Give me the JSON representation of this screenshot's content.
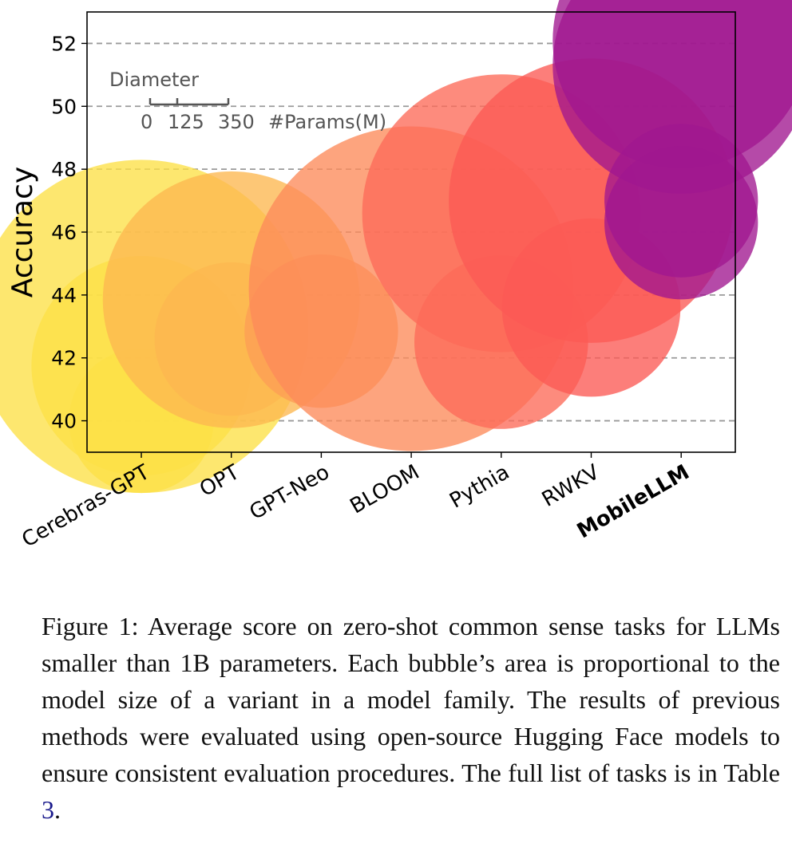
{
  "chart_data": {
    "type": "bubble",
    "ylabel": "Accuracy",
    "xlabel": "",
    "ylim": [
      39,
      53
    ],
    "yticks": [
      40,
      42,
      44,
      46,
      48,
      50,
      52
    ],
    "grid": "horizontal dashed",
    "categories": [
      "Cerebras-GPT",
      "OPT",
      "GPT-Neo",
      "BLOOM",
      "Pythia",
      "RWKV",
      "MobileLLM"
    ],
    "highlighted_category": "MobileLLM",
    "size_legend": {
      "title": "Diameter",
      "ticks": [
        "0",
        "125",
        "350"
      ],
      "unit_label": "#Params(M)"
    },
    "series": [
      {
        "category": "Cerebras-GPT",
        "color": "#fde047",
        "points": [
          {
            "accuracy": 43.0,
            "params_m": 590
          },
          {
            "accuracy": 41.75,
            "params_m": 256
          },
          {
            "accuracy": 40.0,
            "params_m": 111
          }
        ]
      },
      {
        "category": "OPT",
        "color": "#fdb750",
        "points": [
          {
            "accuracy": 43.85,
            "params_m": 350
          },
          {
            "accuracy": 42.6,
            "params_m": 125
          }
        ]
      },
      {
        "category": "GPT-Neo",
        "color": "#fd9d55",
        "points": [
          {
            "accuracy": 42.85,
            "params_m": 125
          }
        ]
      },
      {
        "category": "BLOOM",
        "color": "#fd8a5a",
        "points": [
          {
            "accuracy": 44.2,
            "params_m": 560
          }
        ]
      },
      {
        "category": "Pythia",
        "color": "#fc6a58",
        "points": [
          {
            "accuracy": 46.6,
            "params_m": 410
          },
          {
            "accuracy": 42.5,
            "params_m": 160
          }
        ]
      },
      {
        "category": "RWKV",
        "color": "#fb5a55",
        "points": [
          {
            "accuracy": 47.0,
            "params_m": 430
          },
          {
            "accuracy": 43.6,
            "params_m": 169
          }
        ]
      },
      {
        "category": "MobileLLM",
        "color": "#a0178f",
        "points": [
          {
            "accuracy": 52.1,
            "params_m": 350
          },
          {
            "accuracy": 51.3,
            "params_m": 350
          },
          {
            "accuracy": 47.0,
            "params_m": 125
          },
          {
            "accuracy": 46.3,
            "params_m": 125
          }
        ]
      }
    ]
  },
  "caption": {
    "text": "Figure 1: Average score on zero-shot common sense tasks for LLMs smaller than 1B parameters. Each bubble’s area is proportional to the model size of a variant in a model family. The results of previous methods were evaluated using open-source Hugging Face models to ensure consistent evaluation procedures. The full list of tasks is in Table ",
    "ref": "3",
    "end": "."
  }
}
